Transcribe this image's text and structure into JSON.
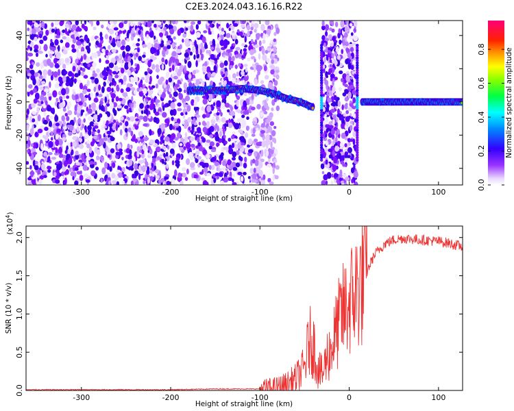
{
  "title": "C2E3.2024.043.16.16.R22",
  "chart_data": [
    {
      "type": "heatmap",
      "title": "C2E3.2024.043.16.16.R22",
      "xlabel": "Height of straight line (km)",
      "ylabel": "Frequency (Hz)",
      "xlim": [
        -362,
        127
      ],
      "ylim": [
        -50,
        49
      ],
      "x_ticks": [
        -300,
        -200,
        -100,
        0,
        100
      ],
      "x_tick_labels": [
        "-300",
        "-200",
        "-100",
        "0",
        "100"
      ],
      "y_ticks": [
        -40,
        -20,
        0,
        20,
        40
      ],
      "y_tick_labels": [
        "-40",
        "-20",
        "0",
        "20",
        "40"
      ],
      "colorbar": {
        "label": "Normalized spectral amplitude",
        "range": [
          0,
          0.97
        ],
        "ticks": [
          0.0,
          0.2,
          0.4,
          0.6,
          0.8
        ],
        "tick_labels": [
          "0.0",
          "0.2",
          "0.4",
          "0.6",
          "0.8"
        ],
        "colormap": "rainbow (white-purple-blue-cyan-green-yellow-orange-red-magenta)"
      },
      "features": {
        "noise_region_x": [
          -362,
          -90
        ],
        "signal_trace": [
          {
            "x": -180,
            "y": 7
          },
          {
            "x": -160,
            "y": 7
          },
          {
            "x": -140,
            "y": 7
          },
          {
            "x": -120,
            "y": 8
          },
          {
            "x": -100,
            "y": 7
          },
          {
            "x": -85,
            "y": 5
          },
          {
            "x": -70,
            "y": 2
          },
          {
            "x": -55,
            "y": 0
          },
          {
            "x": -42,
            "y": -3
          },
          {
            "x": 15,
            "y": 0
          },
          {
            "x": 60,
            "y": 0
          },
          {
            "x": 127,
            "y": 0
          }
        ],
        "gap_band_x": [
          -30,
          8
        ],
        "vertical_streaks_x": [
          -31,
          9
        ]
      }
    },
    {
      "type": "line",
      "xlabel": "Height of straight line (km)",
      "ylabel": "SNR (10 * v/v)",
      "y_multiplier_label": "(x10",
      "y_multiplier_exp": "4",
      "y_multiplier_close": ")",
      "xlim": [
        -362,
        127
      ],
      "ylim": [
        0,
        2.15
      ],
      "x_ticks": [
        -300,
        -200,
        -100,
        0,
        100
      ],
      "x_tick_labels": [
        "-300",
        "-200",
        "-100",
        "0",
        "100"
      ],
      "y_ticks": [
        0.0,
        0.5,
        1.0,
        1.5,
        2.0
      ],
      "y_tick_labels": [
        "0.0",
        "0.5",
        "1.0",
        "1.5",
        "2.0"
      ],
      "color": "#ee3333",
      "series": [
        {
          "x": [
            -362,
            -300,
            -250,
            -200,
            -150,
            -110,
            -95,
            -80,
            -70,
            -60,
            -50,
            -45,
            -40,
            -35,
            -30,
            -25,
            -20,
            -15,
            -10,
            -5,
            0,
            5,
            10,
            15,
            20,
            25,
            30,
            40,
            50,
            60,
            70,
            80,
            90,
            100,
            110,
            120,
            127
          ],
          "y": [
            0.01,
            0.01,
            0.01,
            0.01,
            0.02,
            0.02,
            0.02,
            0.04,
            0.08,
            0.15,
            0.3,
            0.65,
            0.6,
            0.3,
            0.2,
            0.45,
            0.55,
            0.75,
            0.95,
            1.05,
            1.15,
            1.25,
            1.35,
            1.45,
            1.55,
            1.7,
            1.8,
            1.92,
            1.97,
            1.99,
            1.98,
            1.97,
            1.96,
            1.95,
            1.93,
            1.9,
            1.88
          ]
        }
      ]
    }
  ]
}
